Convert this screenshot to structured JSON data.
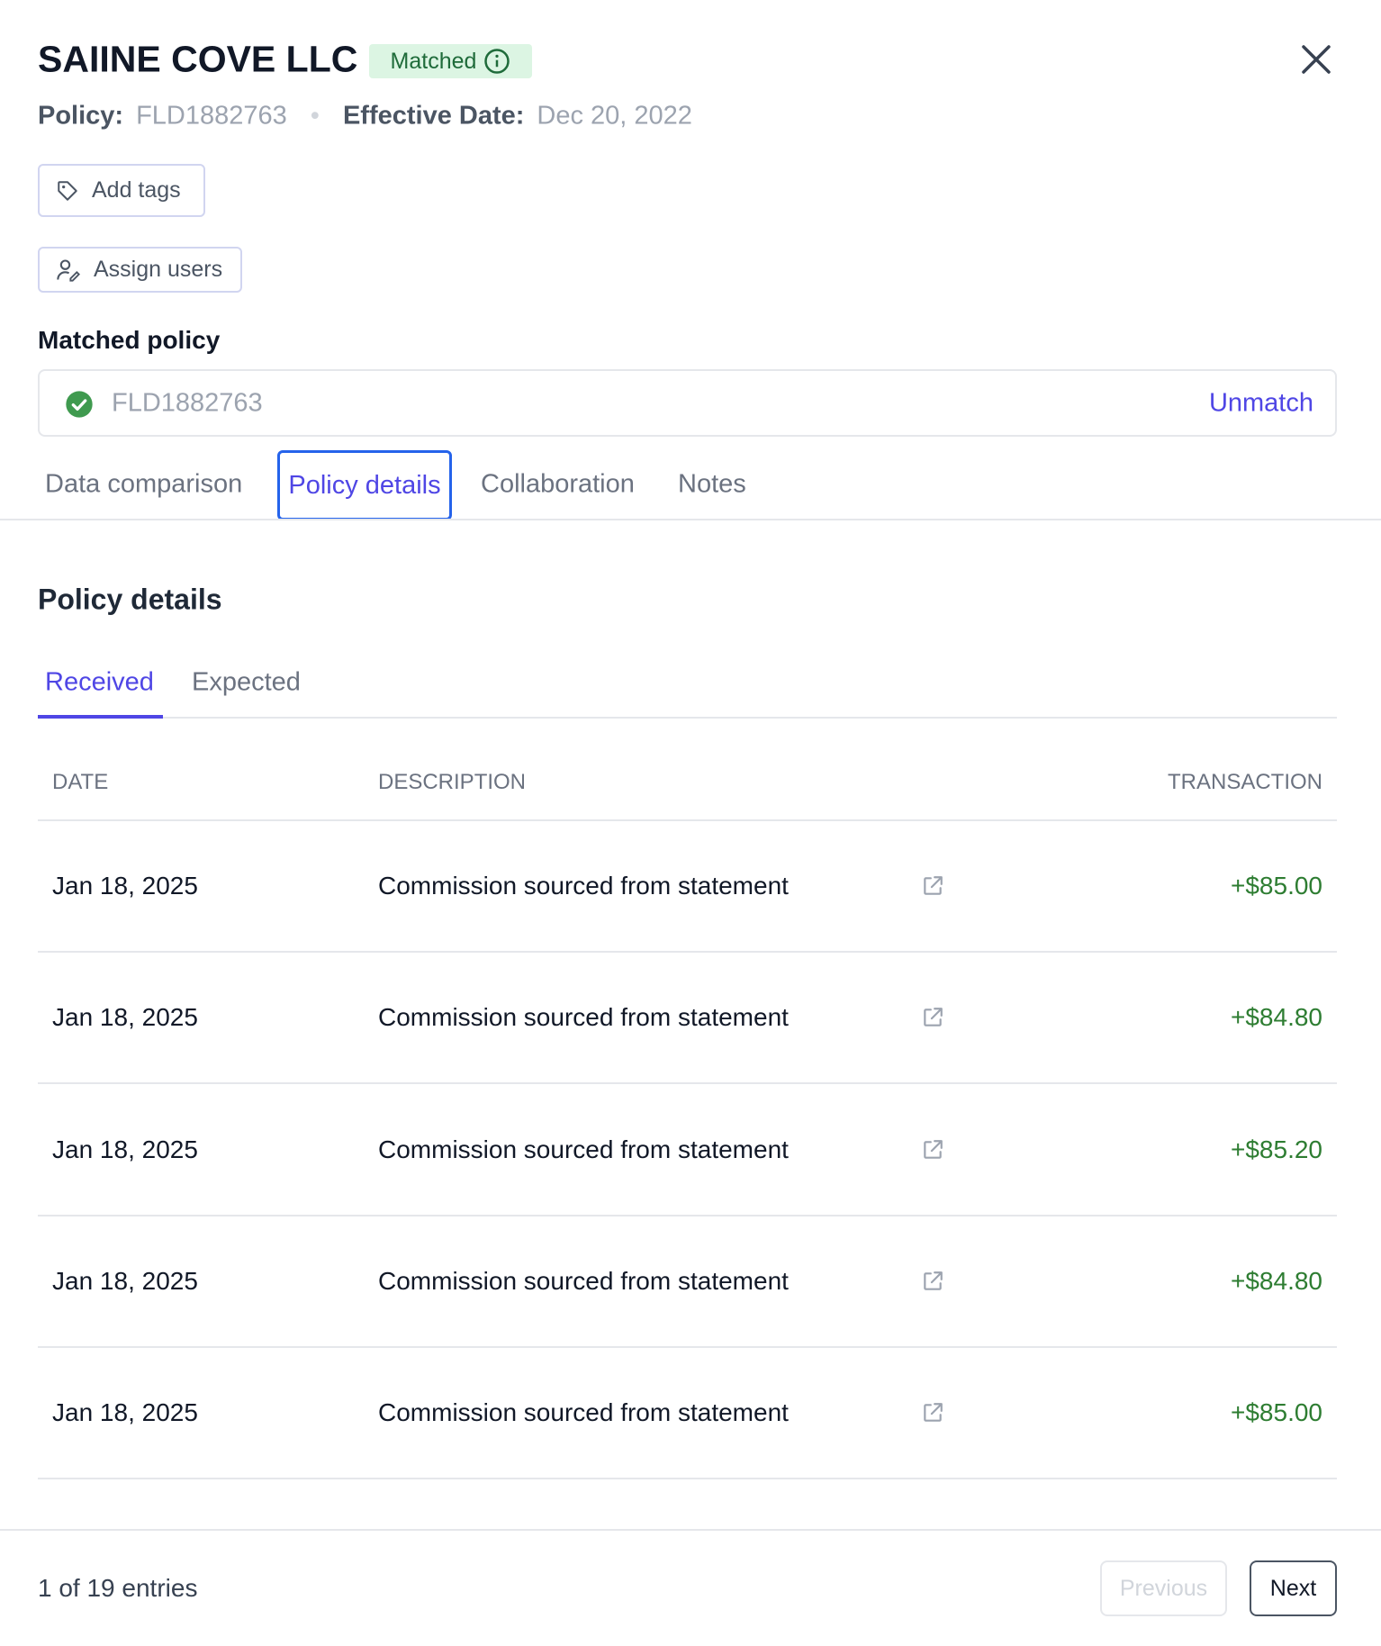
{
  "header": {
    "title": "SAIINE COVE LLC",
    "status": "Matched",
    "policy_label": "Policy:",
    "policy_number": "FLD1882763",
    "effective_label": "Effective Date:",
    "effective_date": "Dec 20, 2022"
  },
  "actions": [
    "Add tags",
    "Assign users"
  ],
  "matched_policy": {
    "label": "Matched policy",
    "number": "FLD1882763",
    "action": "Unmatch"
  },
  "tabs": [
    "Data comparison",
    "Policy details",
    "Collaboration",
    "Notes"
  ],
  "section": {
    "title": "Policy details",
    "subtabs": [
      "Received",
      "Expected"
    ]
  },
  "table": {
    "columns": [
      "DATE",
      "DESCRIPTION",
      "TRANSACTION"
    ],
    "rows": [
      [
        "Jan 18, 2025",
        "Commission sourced from statement",
        "+$85.00"
      ],
      [
        "Jan 18, 2025",
        "Commission sourced from statement",
        "+$84.80"
      ],
      [
        "Jan 18, 2025",
        "Commission sourced from statement",
        "+$85.20"
      ],
      [
        "Jan 18, 2025",
        "Commission sourced from statement",
        "+$84.80"
      ],
      [
        "Jan 18, 2025",
        "Commission sourced from statement",
        "+$85.00"
      ]
    ]
  },
  "footer": {
    "entries": "1 of 19 entries",
    "previous": "Previous",
    "next": "Next"
  }
}
